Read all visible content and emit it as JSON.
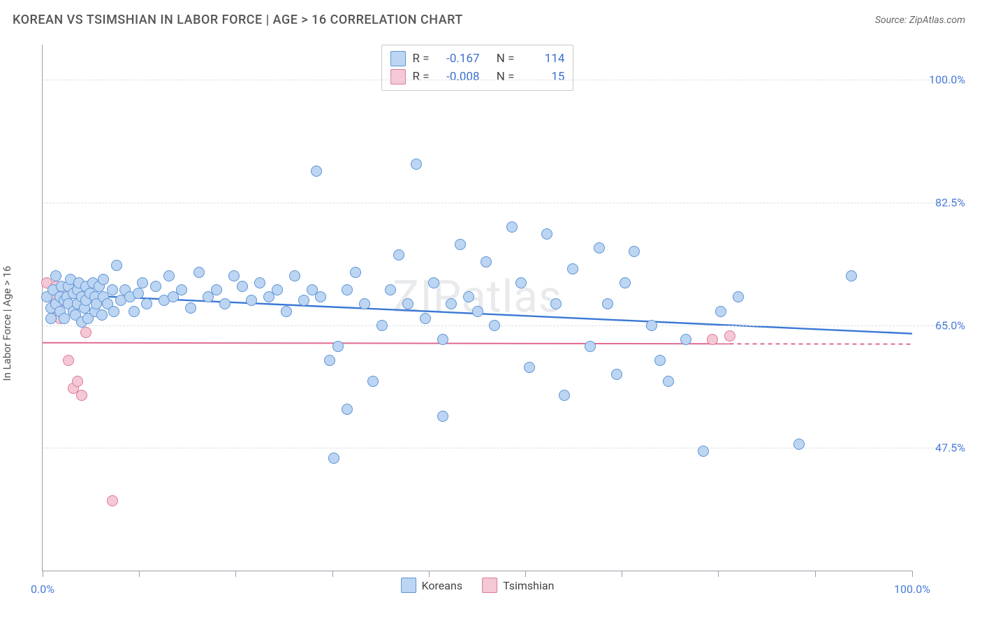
{
  "title": "KOREAN VS TSIMSHIAN IN LABOR FORCE | AGE > 16 CORRELATION CHART",
  "source": "Source: ZipAtlas.com",
  "watermark": "ZIPatlas",
  "ylabel": "In Labor Force | Age > 16",
  "chart": {
    "type": "scatter",
    "xlim": [
      0,
      100
    ],
    "ylim": [
      30,
      105
    ],
    "background_color": "#ffffff",
    "grid_color": "#d8dde2",
    "axis_color": "#9aa1a8",
    "ytick_values": [
      47.5,
      65.0,
      82.5,
      100.0
    ],
    "ytick_labels": [
      "47.5%",
      "65.0%",
      "82.5%",
      "100.0%"
    ],
    "ytick_color": "#4a7bd8",
    "ytick_fontsize": 16,
    "xtick_positions": [
      0,
      11.1,
      22.2,
      33.3,
      44.4,
      55.5,
      66.6,
      77.7,
      88.8,
      100
    ],
    "xtick_labels": {
      "start": "0.0%",
      "end": "100.0%"
    },
    "marker_radius": 8,
    "marker_stroke_width": 1.2,
    "series": {
      "koreans": {
        "label": "Koreans",
        "fill": "#bcd5f2",
        "stroke": "#5e94d6",
        "trend_color": "#3b78d6",
        "trend_width": 2.4,
        "trend": {
          "x1": 0,
          "y1": 69.5,
          "x2": 100,
          "y2": 63.8,
          "dash_from_x": null
        },
        "corr_R": "-0.167",
        "corr_N": "114",
        "points": [
          [
            0.5,
            69
          ],
          [
            1,
            67.5
          ],
          [
            1,
            66
          ],
          [
            1.2,
            70
          ],
          [
            1.5,
            68
          ],
          [
            1.5,
            72
          ],
          [
            2,
            69
          ],
          [
            2,
            67
          ],
          [
            2.2,
            70.5
          ],
          [
            2.5,
            68.5
          ],
          [
            2.5,
            66
          ],
          [
            2.8,
            69
          ],
          [
            3,
            70.5
          ],
          [
            3,
            68
          ],
          [
            3.2,
            71.5
          ],
          [
            3.5,
            67
          ],
          [
            3.5,
            69.5
          ],
          [
            3.8,
            66.5
          ],
          [
            4,
            70
          ],
          [
            4,
            68
          ],
          [
            4.2,
            71
          ],
          [
            4.5,
            65.5
          ],
          [
            4.5,
            69
          ],
          [
            4.8,
            67.5
          ],
          [
            5,
            70.5
          ],
          [
            5,
            68.5
          ],
          [
            5.2,
            66
          ],
          [
            5.5,
            69.5
          ],
          [
            5.8,
            71
          ],
          [
            6,
            67
          ],
          [
            6,
            69
          ],
          [
            6.2,
            68
          ],
          [
            6.5,
            70.5
          ],
          [
            6.8,
            66.5
          ],
          [
            7,
            69
          ],
          [
            7,
            71.5
          ],
          [
            7.5,
            68
          ],
          [
            8,
            70
          ],
          [
            8.2,
            67
          ],
          [
            8.5,
            73.5
          ],
          [
            9,
            68.5
          ],
          [
            9.5,
            70
          ],
          [
            10,
            69
          ],
          [
            10.5,
            67
          ],
          [
            11,
            69.5
          ],
          [
            11.5,
            71
          ],
          [
            12,
            68
          ],
          [
            13,
            70.5
          ],
          [
            14,
            68.5
          ],
          [
            14.5,
            72
          ],
          [
            15,
            69
          ],
          [
            16,
            70
          ],
          [
            17,
            67.5
          ],
          [
            18,
            72.5
          ],
          [
            19,
            69
          ],
          [
            20,
            70
          ],
          [
            21,
            68
          ],
          [
            22,
            72
          ],
          [
            23,
            70.5
          ],
          [
            24,
            68.5
          ],
          [
            25,
            71
          ],
          [
            26,
            69
          ],
          [
            27,
            70
          ],
          [
            28,
            67
          ],
          [
            29,
            72
          ],
          [
            30,
            68.5
          ],
          [
            31,
            70
          ],
          [
            31.5,
            87
          ],
          [
            32,
            69
          ],
          [
            33,
            60
          ],
          [
            33.5,
            46
          ],
          [
            34,
            62
          ],
          [
            35,
            70
          ],
          [
            35,
            53
          ],
          [
            36,
            72.5
          ],
          [
            37,
            68
          ],
          [
            38,
            57
          ],
          [
            39,
            65
          ],
          [
            40,
            70
          ],
          [
            41,
            75
          ],
          [
            42,
            68
          ],
          [
            43,
            88
          ],
          [
            44,
            66
          ],
          [
            45,
            71
          ],
          [
            46,
            63
          ],
          [
            46,
            52
          ],
          [
            47,
            68
          ],
          [
            48,
            76.5
          ],
          [
            49,
            69
          ],
          [
            50,
            67
          ],
          [
            51,
            74
          ],
          [
            52,
            65
          ],
          [
            54,
            79
          ],
          [
            55,
            71
          ],
          [
            56,
            59
          ],
          [
            58,
            78
          ],
          [
            59,
            68
          ],
          [
            60,
            55
          ],
          [
            61,
            73
          ],
          [
            63,
            62
          ],
          [
            64,
            76
          ],
          [
            65,
            68
          ],
          [
            66,
            58
          ],
          [
            67,
            71
          ],
          [
            68,
            75.5
          ],
          [
            70,
            65
          ],
          [
            71,
            60
          ],
          [
            72,
            57
          ],
          [
            74,
            63
          ],
          [
            76,
            47
          ],
          [
            78,
            67
          ],
          [
            80,
            69
          ],
          [
            87,
            48
          ],
          [
            93,
            72
          ]
        ]
      },
      "tsimshian": {
        "label": "Tsimshian",
        "fill": "#f4c8d4",
        "stroke": "#dd7a9a",
        "trend_color": "#e06b8f",
        "trend_width": 2,
        "trend": {
          "x1": 0,
          "y1": 62.5,
          "x2": 100,
          "y2": 62.3,
          "dash_from_x": 79
        },
        "corr_R": "-0.008",
        "corr_N": "15",
        "points": [
          [
            0.5,
            71
          ],
          [
            1,
            69
          ],
          [
            1.2,
            67.5
          ],
          [
            1.5,
            70.5
          ],
          [
            1.8,
            68
          ],
          [
            2,
            66
          ],
          [
            2.2,
            69.5
          ],
          [
            3,
            60
          ],
          [
            3.5,
            56
          ],
          [
            4,
            57
          ],
          [
            4.5,
            55
          ],
          [
            5,
            64
          ],
          [
            8,
            40
          ],
          [
            77,
            63
          ],
          [
            79,
            63.5
          ]
        ]
      }
    },
    "legend": [
      {
        "label": "Koreans",
        "fill": "#bcd5f2",
        "stroke": "#5e94d6"
      },
      {
        "label": "Tsimshian",
        "fill": "#f4c8d4",
        "stroke": "#dd7a9a"
      }
    ],
    "correlation_box": {
      "R_label": "R =",
      "N_label": "N =",
      "swatch_fill_1": "#bcd5f2",
      "swatch_stroke_1": "#5e94d6",
      "swatch_fill_2": "#f4c8d4",
      "swatch_stroke_2": "#dd7a9a"
    }
  }
}
